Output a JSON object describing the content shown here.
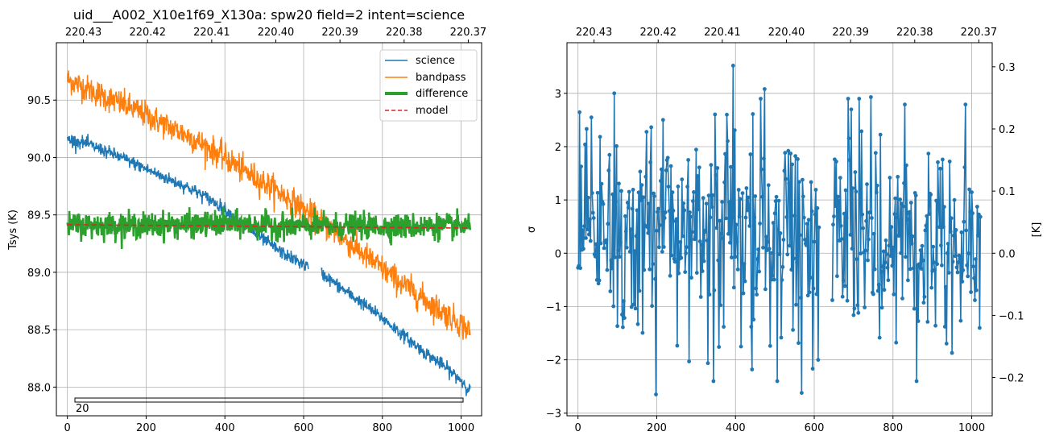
{
  "figure": {
    "left_title": "uid___A002_X10e1f69_X130a: spw20 field=2 intent=science"
  },
  "chart_data": [
    {
      "type": "line",
      "title": "uid___A002_X10e1f69_X130a: spw20 field=2 intent=science",
      "xlabel": "",
      "ylabel": "Tsys (K)",
      "xlim": [
        -28,
        1052
      ],
      "ylim": [
        87.75,
        91.0
      ],
      "x_ticks": [
        0,
        200,
        400,
        600,
        800,
        1000
      ],
      "x_tick_labels": [
        "0",
        "200",
        "400",
        "600",
        "800",
        "1000"
      ],
      "y_ticks": [
        88.0,
        88.5,
        89.0,
        89.5,
        90.0,
        90.5
      ],
      "y_tick_labels": [
        "88.0",
        "88.5",
        "89.0",
        "89.5",
        "90.0",
        "90.5"
      ],
      "top_axis_label": "",
      "top_ticks": [
        220.43,
        220.42,
        220.41,
        220.4,
        220.39,
        220.38,
        220.37
      ],
      "top_tick_labels": [
        "220.43",
        "220.42",
        "220.41",
        "220.40",
        "220.39",
        "220.38",
        "220.37"
      ],
      "grid": true,
      "legend_position": "top-right",
      "channels": [
        0,
        1023
      ],
      "gap": [
        612,
        645
      ],
      "annotation_text": "20",
      "series": [
        {
          "name": "science",
          "color": "#1f77b4",
          "style": "solid",
          "points": [
            [
              0,
              90.16
            ],
            [
              50,
              90.12
            ],
            [
              100,
              90.05
            ],
            [
              150,
              89.98
            ],
            [
              200,
              89.9
            ],
            [
              250,
              89.82
            ],
            [
              300,
              89.75
            ],
            [
              350,
              89.66
            ],
            [
              400,
              89.55
            ],
            [
              450,
              89.4
            ],
            [
              500,
              89.28
            ],
            [
              550,
              89.16
            ],
            [
              610,
              89.05
            ],
            [
              650,
              88.98
            ],
            [
              700,
              88.85
            ],
            [
              750,
              88.73
            ],
            [
              800,
              88.6
            ],
            [
              850,
              88.46
            ],
            [
              900,
              88.32
            ],
            [
              950,
              88.2
            ],
            [
              1000,
              88.06
            ],
            [
              1023,
              87.97
            ]
          ]
        },
        {
          "name": "bandpass",
          "color": "#ff7f0e",
          "style": "solid",
          "points": [
            [
              0,
              90.68
            ],
            [
              50,
              90.6
            ],
            [
              100,
              90.52
            ],
            [
              150,
              90.45
            ],
            [
              200,
              90.37
            ],
            [
              250,
              90.28
            ],
            [
              300,
              90.2
            ],
            [
              350,
              90.1
            ],
            [
              400,
              90.0
            ],
            [
              450,
              89.88
            ],
            [
              500,
              89.78
            ],
            [
              550,
              89.67
            ],
            [
              600,
              89.55
            ],
            [
              650,
              89.42
            ],
            [
              700,
              89.3
            ],
            [
              750,
              89.16
            ],
            [
              800,
              89.03
            ],
            [
              850,
              88.9
            ],
            [
              900,
              88.78
            ],
            [
              950,
              88.66
            ],
            [
              1000,
              88.55
            ],
            [
              1023,
              88.48
            ]
          ]
        },
        {
          "name": "difference",
          "color": "#2ca02c",
          "style": "thick",
          "points": [
            [
              0,
              89.41
            ],
            [
              200,
              89.41
            ],
            [
              400,
              89.42
            ],
            [
              600,
              89.4
            ],
            [
              800,
              89.4
            ],
            [
              1023,
              89.4
            ]
          ]
        },
        {
          "name": "model",
          "color": "#d62728",
          "style": "dashed",
          "points": [
            [
              0,
              89.415
            ],
            [
              1023,
              89.385
            ]
          ]
        }
      ]
    },
    {
      "type": "line",
      "title": "",
      "xlabel": "",
      "ylabel": "σ",
      "right_ylabel": "[K]",
      "xlim": [
        -28,
        1052
      ],
      "ylim": [
        -3.05,
        3.95
      ],
      "x_ticks": [
        0,
        200,
        400,
        600,
        800,
        1000
      ],
      "x_tick_labels": [
        "0",
        "200",
        "400",
        "600",
        "800",
        "1000"
      ],
      "y_ticks": [
        -3,
        -2,
        -1,
        0,
        1,
        2,
        3
      ],
      "y_tick_labels": [
        "−3",
        "−2",
        "−1",
        "0",
        "1",
        "2",
        "3"
      ],
      "right_ticks": [
        -0.2,
        -0.1,
        0.0,
        0.1,
        0.2,
        0.3
      ],
      "right_tick_labels": [
        "−0.2",
        "−0.1",
        "0.0",
        "0.1",
        "0.2",
        "0.3"
      ],
      "right_ylim": [
        -0.2615,
        0.3387
      ],
      "top_ticks": [
        220.43,
        220.42,
        220.41,
        220.4,
        220.39,
        220.38,
        220.37
      ],
      "top_tick_labels": [
        "220.43",
        "220.42",
        "220.41",
        "220.40",
        "220.39",
        "220.38",
        "220.37"
      ],
      "grid": true,
      "channels": [
        0,
        1023
      ],
      "gap": [
        612,
        645
      ],
      "series": [
        {
          "name": "",
          "color": "#1f77b4",
          "marker": "dot",
          "mean": 0.35,
          "sd": 1.0,
          "extremes": [
            [
              395,
              3.52
            ],
            [
              475,
              3.08
            ],
            [
              92,
              3.0
            ],
            [
              745,
              2.93
            ],
            [
              198,
              -2.65
            ],
            [
              568,
              -2.62
            ],
            [
              282,
              -2.03
            ],
            [
              443,
              -2.18
            ],
            [
              950,
              -1.87
            ],
            [
              1021,
              -1.4
            ]
          ]
        }
      ]
    }
  ]
}
